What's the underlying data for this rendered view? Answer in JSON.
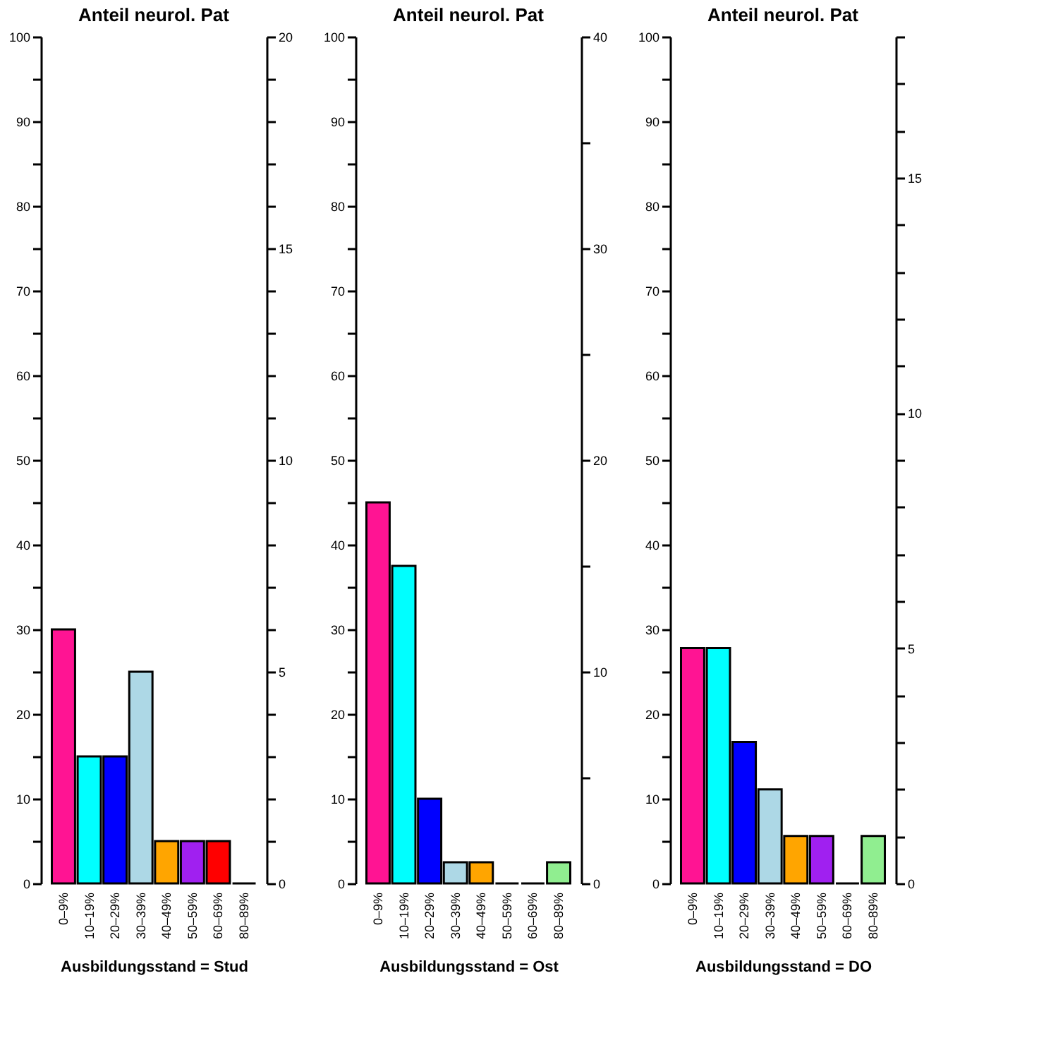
{
  "chart_data": [
    {
      "type": "bar",
      "title": "Anteil neurol. Pat",
      "xlabel": "Ausbildungsstand = Stud",
      "categories": [
        "0–9%",
        "10–19%",
        "20–29%",
        "30–39%",
        "40–49%",
        "50–59%",
        "60–69%",
        "80–89%"
      ],
      "values": [
        30,
        15,
        15,
        25,
        5,
        5,
        5,
        0
      ],
      "colors": [
        "#ff1493",
        "#00ffff",
        "#0000ff",
        "#add8e6",
        "#ffa500",
        "#a020f0",
        "#ff0000",
        "#000000"
      ],
      "ylim": [
        0,
        100
      ],
      "yticks": [
        0,
        {
          "value": 5,
          "label": null
        },
        10,
        {
          "value": 15,
          "label": null
        },
        20,
        {
          "value": 25,
          "label": null
        },
        30,
        {
          "value": 35,
          "label": null
        },
        40,
        {
          "value": 45,
          "label": null
        },
        50,
        {
          "value": 55,
          "label": null
        },
        60,
        {
          "value": 65,
          "label": null
        },
        70,
        {
          "value": 75,
          "label": null
        },
        80,
        {
          "value": 85,
          "label": null
        },
        90,
        {
          "value": 95,
          "label": null
        },
        100
      ],
      "y2lim": [
        0,
        20
      ],
      "y2ticks": [
        0,
        {
          "value": 1,
          "label": null
        },
        {
          "value": 2,
          "label": null
        },
        {
          "value": 3,
          "label": null
        },
        {
          "value": 4,
          "label": null
        },
        5,
        {
          "value": 6,
          "label": null
        },
        {
          "value": 7,
          "label": null
        },
        {
          "value": 8,
          "label": null
        },
        {
          "value": 9,
          "label": null
        },
        10,
        {
          "value": 11,
          "label": null
        },
        {
          "value": 12,
          "label": null
        },
        {
          "value": 13,
          "label": null
        },
        {
          "value": 14,
          "label": null
        },
        15,
        {
          "value": 16,
          "label": null
        },
        {
          "value": 17,
          "label": null
        },
        {
          "value": 18,
          "label": null
        },
        {
          "value": 19,
          "label": null
        },
        20
      ]
    },
    {
      "type": "bar",
      "title": "Anteil neurol. Pat",
      "xlabel": "Ausbildungsstand = Ost",
      "categories": [
        "0–9%",
        "10–19%",
        "20–29%",
        "30–39%",
        "40–49%",
        "50–59%",
        "60–69%",
        "80–89%"
      ],
      "values": [
        45,
        37.5,
        10,
        2.5,
        2.5,
        0,
        0,
        2.5
      ],
      "colors": [
        "#ff1493",
        "#00ffff",
        "#0000ff",
        "#add8e6",
        "#ffa500",
        "#000000",
        "#000000",
        "#90ee90"
      ],
      "ylim": [
        0,
        100
      ],
      "yticks": [
        0,
        {
          "value": 5,
          "label": null
        },
        10,
        {
          "value": 15,
          "label": null
        },
        20,
        {
          "value": 25,
          "label": null
        },
        30,
        {
          "value": 35,
          "label": null
        },
        40,
        {
          "value": 45,
          "label": null
        },
        50,
        {
          "value": 55,
          "label": null
        },
        60,
        {
          "value": 65,
          "label": null
        },
        70,
        {
          "value": 75,
          "label": null
        },
        80,
        {
          "value": 85,
          "label": null
        },
        90,
        {
          "value": 95,
          "label": null
        },
        100
      ],
      "y2lim": [
        0,
        40
      ],
      "y2ticks": [
        0,
        {
          "value": 5,
          "label": null
        },
        10,
        {
          "value": 15,
          "label": null
        },
        20,
        {
          "value": 25,
          "label": null
        },
        30,
        {
          "value": 35,
          "label": null
        },
        40
      ]
    },
    {
      "type": "bar",
      "title": "Anteil neurol. Pat",
      "xlabel": "Ausbildungsstand = DO",
      "categories": [
        "0–9%",
        "10–19%",
        "20–29%",
        "30–39%",
        "40–49%",
        "50–59%",
        "60–69%",
        "80–89%"
      ],
      "values": [
        27.8,
        27.8,
        16.7,
        11.1,
        5.6,
        5.6,
        0,
        5.6
      ],
      "colors": [
        "#ff1493",
        "#00ffff",
        "#0000ff",
        "#add8e6",
        "#ffa500",
        "#a020f0",
        "#000000",
        "#90ee90"
      ],
      "ylim": [
        0,
        100
      ],
      "yticks": [
        0,
        {
          "value": 5,
          "label": null
        },
        10,
        {
          "value": 15,
          "label": null
        },
        20,
        {
          "value": 25,
          "label": null
        },
        30,
        {
          "value": 35,
          "label": null
        },
        40,
        {
          "value": 45,
          "label": null
        },
        50,
        {
          "value": 55,
          "label": null
        },
        60,
        {
          "value": 65,
          "label": null
        },
        70,
        {
          "value": 75,
          "label": null
        },
        80,
        {
          "value": 85,
          "label": null
        },
        90,
        {
          "value": 95,
          "label": null
        },
        100
      ],
      "y2lim": [
        0,
        18
      ],
      "y2ticks": [
        0,
        {
          "value": 1,
          "label": null
        },
        {
          "value": 2,
          "label": null
        },
        {
          "value": 3,
          "label": null
        },
        {
          "value": 4,
          "label": null
        },
        5,
        {
          "value": 6,
          "label": null
        },
        {
          "value": 7,
          "label": null
        },
        {
          "value": 8,
          "label": null
        },
        {
          "value": 9,
          "label": null
        },
        10,
        {
          "value": 11,
          "label": null
        },
        {
          "value": 12,
          "label": null
        },
        {
          "value": 13,
          "label": null
        },
        {
          "value": 14,
          "label": null
        },
        15,
        {
          "value": 16,
          "label": null
        },
        {
          "value": 17,
          "label": null
        },
        {
          "value": 18,
          "label": null
        }
      ]
    }
  ]
}
